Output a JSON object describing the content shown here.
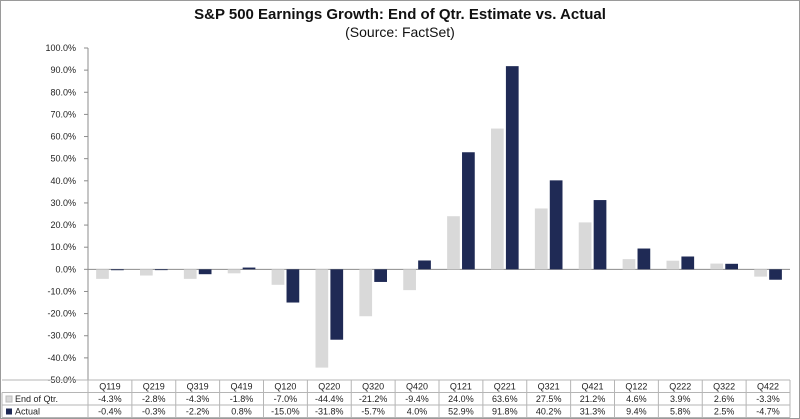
{
  "chart_data": {
    "type": "bar",
    "title": "S&P 500 Earnings Growth: End of Qtr. Estimate vs. Actual",
    "subtitle": "(Source: FactSet)",
    "categories": [
      "Q119",
      "Q219",
      "Q319",
      "Q419",
      "Q120",
      "Q220",
      "Q320",
      "Q420",
      "Q121",
      "Q221",
      "Q321",
      "Q421",
      "Q122",
      "Q222",
      "Q322",
      "Q422"
    ],
    "series": [
      {
        "name": "End of Qtr.",
        "color": "#d9d9d9",
        "values": [
          -4.3,
          -2.8,
          -4.3,
          -1.8,
          -7.0,
          -44.4,
          -21.2,
          -9.4,
          24.0,
          63.6,
          27.5,
          21.2,
          4.6,
          3.9,
          2.6,
          -3.3
        ],
        "labels": [
          "-4.3%",
          "-2.8%",
          "-4.3%",
          "-1.8%",
          "-7.0%",
          "-44.4%",
          "-21.2%",
          "-9.4%",
          "24.0%",
          "63.6%",
          "27.5%",
          "21.2%",
          "4.6%",
          "3.9%",
          "2.6%",
          "-3.3%"
        ]
      },
      {
        "name": "Actual",
        "color": "#1f2a55",
        "values": [
          -0.4,
          -0.3,
          -2.2,
          0.8,
          -15.0,
          -31.8,
          -5.7,
          4.0,
          52.9,
          91.8,
          40.2,
          31.3,
          9.4,
          5.8,
          2.5,
          -4.7
        ],
        "labels": [
          "-0.4%",
          "-0.3%",
          "-2.2%",
          "0.8%",
          "-15.0%",
          "-31.8%",
          "-5.7%",
          "4.0%",
          "52.9%",
          "91.8%",
          "40.2%",
          "31.3%",
          "9.4%",
          "5.8%",
          "2.5%",
          "-4.7%"
        ]
      }
    ],
    "yticks": [
      "100.0%",
      "90.0%",
      "80.0%",
      "70.0%",
      "60.0%",
      "50.0%",
      "40.0%",
      "30.0%",
      "20.0%",
      "10.0%",
      "0.0%",
      "-10.0%",
      "-20.0%",
      "-30.0%",
      "-40.0%",
      "-50.0%"
    ],
    "ylim": [
      -50,
      100
    ],
    "ystep": 10,
    "grid": false,
    "legend": "data-table"
  }
}
